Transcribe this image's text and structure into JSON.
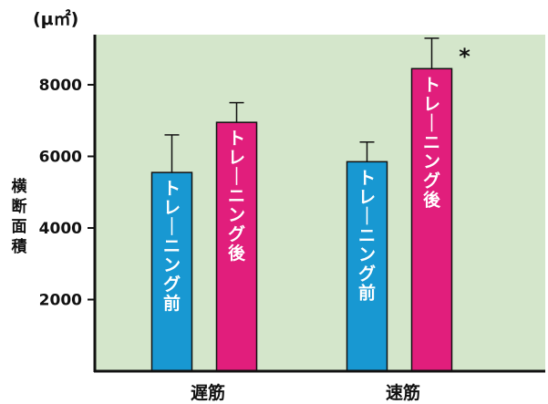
{
  "chart_data": {
    "type": "bar",
    "unit": "(μ㎡)",
    "ylabel": "横断面積",
    "ylim": [
      0,
      9400
    ],
    "yticks": [
      2000,
      4000,
      6000,
      8000
    ],
    "grid": false,
    "background": "#d4e6cb",
    "categories": [
      "遅筋",
      "速筋"
    ],
    "series": [
      {
        "name": "トレーニング前",
        "color": "#1898d2",
        "values": [
          5550,
          5850
        ],
        "errors": [
          1050,
          550
        ]
      },
      {
        "name": "トレーニング後",
        "color": "#e11e7c",
        "values": [
          6950,
          8450
        ],
        "errors": [
          550,
          850
        ]
      }
    ],
    "annotations": [
      {
        "category": "速筋",
        "series": "トレーニング後",
        "text": "*"
      }
    ]
  }
}
